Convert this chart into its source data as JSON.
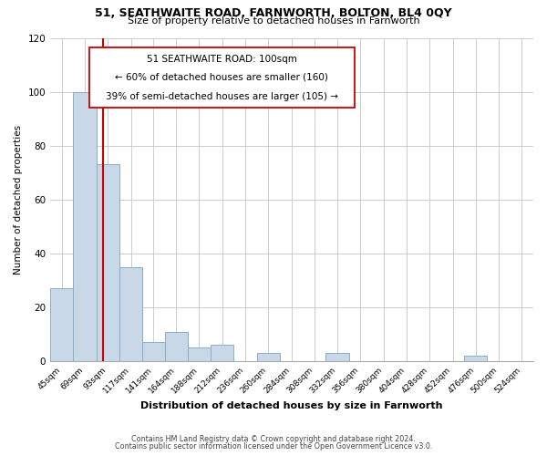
{
  "title1": "51, SEATHWAITE ROAD, FARNWORTH, BOLTON, BL4 0QY",
  "title2": "Size of property relative to detached houses in Farnworth",
  "xlabel": "Distribution of detached houses by size in Farnworth",
  "ylabel": "Number of detached properties",
  "bar_lefts": [
    45,
    69,
    93,
    117,
    141,
    164,
    188,
    212,
    236,
    260,
    284,
    308,
    332,
    356,
    380,
    404,
    428,
    452,
    476,
    500,
    524
  ],
  "bar_widths": [
    24,
    24,
    24,
    24,
    23,
    24,
    24,
    24,
    24,
    24,
    24,
    24,
    24,
    24,
    24,
    24,
    24,
    24,
    24,
    24,
    24
  ],
  "bar_heights": [
    27,
    100,
    73,
    35,
    7,
    11,
    5,
    6,
    0,
    3,
    0,
    0,
    3,
    0,
    0,
    0,
    0,
    0,
    2,
    0,
    0
  ],
  "bar_color": "#c8d8e8",
  "bar_edgecolor": "#8aaec8",
  "vline_x": 100,
  "vline_color": "#cc0000",
  "annotation_text_line1": "51 SEATHWAITE ROAD: 100sqm",
  "annotation_text_line2": "← 60% of detached houses are smaller (160)",
  "annotation_text_line3": "39% of semi-detached houses are larger (105) →",
  "box_edgecolor": "#cc0000",
  "ylim": [
    0,
    120
  ],
  "xlim_left": 45,
  "xlim_right": 548,
  "tick_labels": [
    "45sqm",
    "69sqm",
    "93sqm",
    "117sqm",
    "141sqm",
    "164sqm",
    "188sqm",
    "212sqm",
    "236sqm",
    "260sqm",
    "284sqm",
    "308sqm",
    "332sqm",
    "356sqm",
    "380sqm",
    "404sqm",
    "428sqm",
    "452sqm",
    "476sqm",
    "500sqm",
    "524sqm"
  ],
  "footer1": "Contains HM Land Registry data © Crown copyright and database right 2024.",
  "footer2": "Contains public sector information licensed under the Open Government Licence v3.0.",
  "background_color": "#ffffff",
  "grid_color": "#cccccc"
}
